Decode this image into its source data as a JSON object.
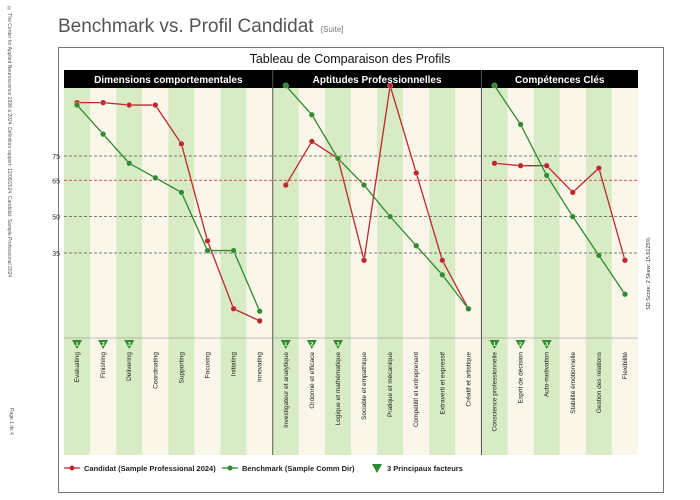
{
  "page": {
    "title": "Benchmark vs. Profil Candidat",
    "title_suffix": "[Suite]",
    "side_note": "© The Center for Applied Neuroscience 1998 à 2024.   Définition rapport: 12/06/2024.   Candidat: Sample Professional 2024",
    "page_number": "Page 1 de 4"
  },
  "chart_data": {
    "type": "line",
    "title": "Tableau de Comparaison des Profils",
    "ylim": [
      0,
      100
    ],
    "reference_lines": [
      {
        "value": 75,
        "label": "75",
        "style": "dashed",
        "color": "#555555"
      },
      {
        "value": 65,
        "label": "65",
        "style": "dashed",
        "color": "#cc2222"
      },
      {
        "value": 50,
        "label": "50",
        "style": "dashed",
        "color": "#555555"
      },
      {
        "value": 35,
        "label": "35",
        "style": "dashed",
        "color": "#555555"
      }
    ],
    "stats_label": "SD Score: 2    Skew: 15.6125%",
    "groups": [
      {
        "name": "Dimensions comportementales",
        "categories": [
          "Evaluating",
          "Finishing",
          "Delivering",
          "Coordinating",
          "Supporting",
          "Focusing",
          "Initiating",
          "Innovating"
        ],
        "candidat": [
          97,
          97,
          96,
          96,
          80,
          40,
          12,
          7
        ],
        "benchmark": [
          96,
          84,
          72,
          66,
          60,
          36,
          36,
          11
        ],
        "top_factors": [
          "1",
          "2",
          "3"
        ]
      },
      {
        "name": "Aptitudes Professionnelles",
        "categories": [
          "Investigateur et analytique",
          "Ordonné et efficace",
          "Logique et mathématique",
          "Sociable et empathique",
          "Pratique et mécanique",
          "Compétitif et entreprenant",
          "Extraverti et expressif",
          "Créatif et artistique"
        ],
        "candidat": [
          63,
          81,
          74,
          32,
          104,
          68,
          32,
          12
        ],
        "benchmark": [
          104,
          92,
          74,
          63,
          50,
          38,
          26,
          12
        ],
        "top_factors": [
          "1",
          "2",
          "3"
        ]
      },
      {
        "name": "Compétences Clés",
        "categories": [
          "Conscience professionnelle",
          "Esprit de décision",
          "Auto-motivation",
          "Stabilité émotionnelle",
          "Gestion des relations",
          "Flexibilité"
        ],
        "candidat": [
          72,
          71,
          71,
          60,
          70,
          32
        ],
        "benchmark": [
          104,
          88,
          67,
          50,
          34,
          18
        ],
        "top_factors": [
          "1",
          "2",
          "3"
        ]
      }
    ],
    "series": [
      {
        "name": "Candidat (Sample Professional 2024)",
        "color": "#c0272d",
        "key": "candidat"
      },
      {
        "name": "Benchmark (Sample Comm Dir)",
        "color": "#2e8b2e",
        "key": "benchmark"
      }
    ],
    "legend_factor_label": "3 Principaux facteurs",
    "colors": {
      "band_green": "#d7ecc5",
      "band_cream": "#fbf6ea",
      "header_bg": "#000000",
      "header_text": "#ffffff",
      "marker_green": "#2e8b2e"
    }
  }
}
